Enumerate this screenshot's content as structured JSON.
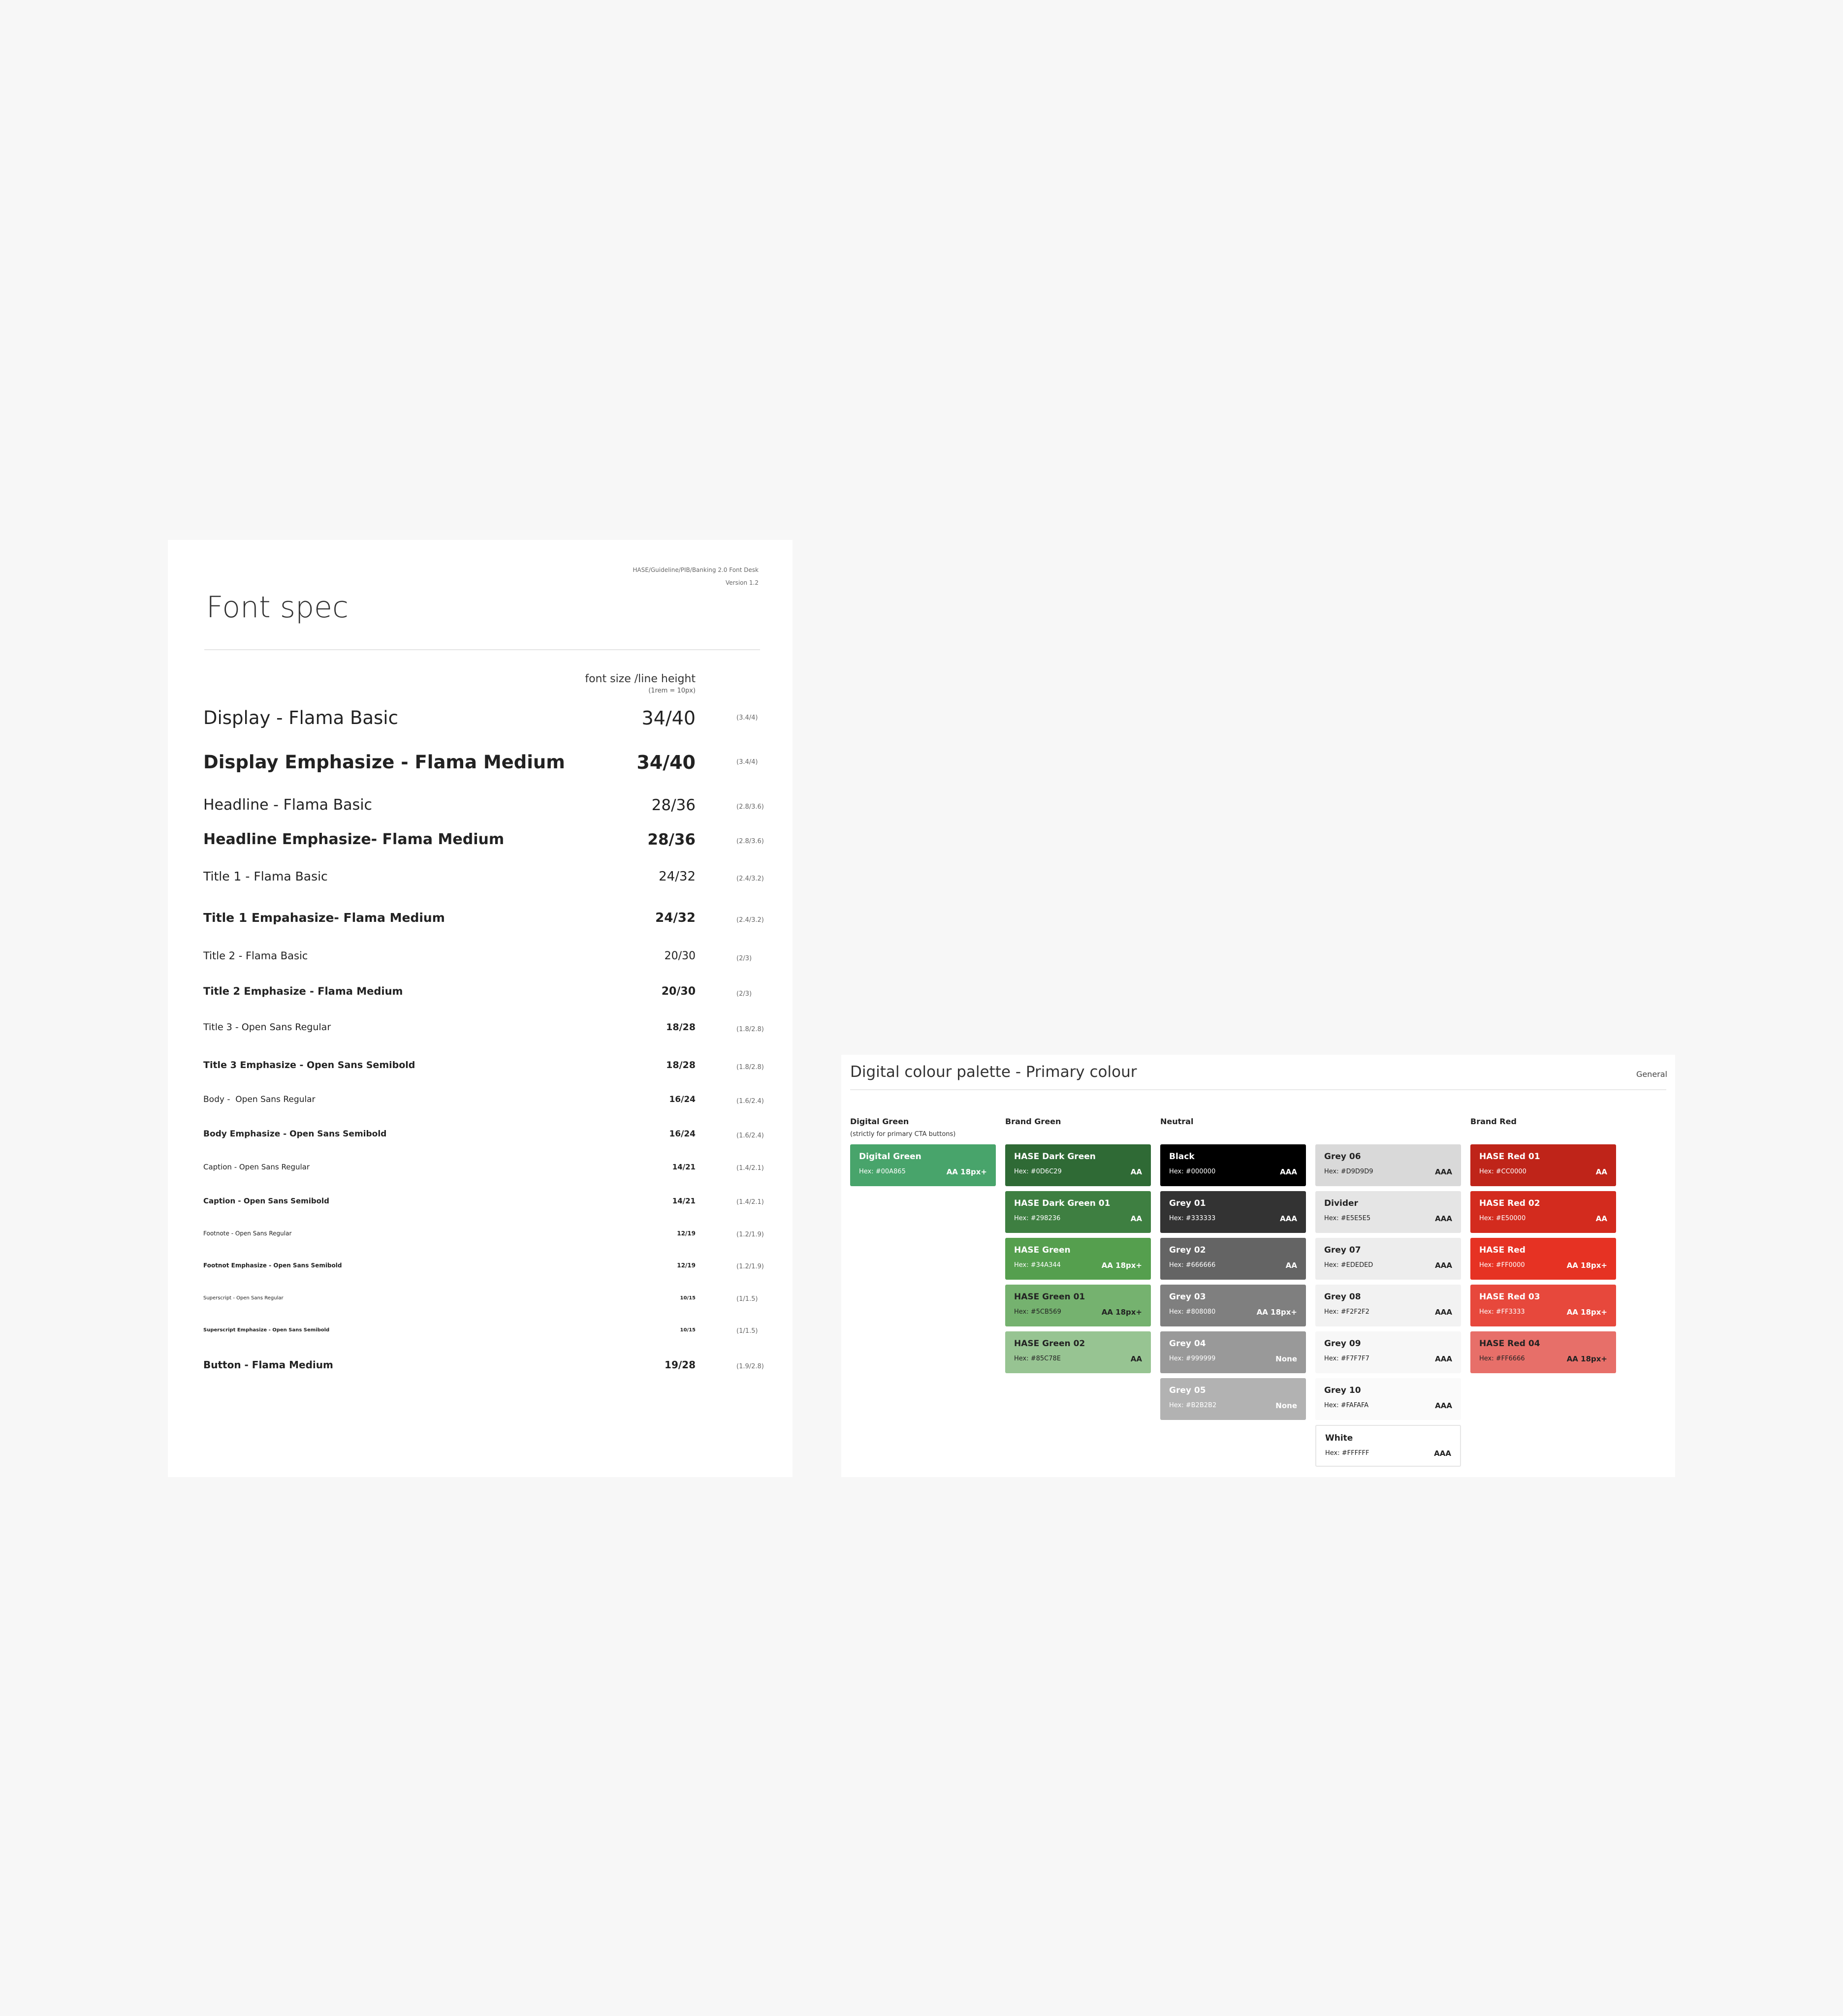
{
  "font_spec": {
    "breadcrumb": "HASE/Guideline/PIB/Banking 2.0 Font Desk",
    "version": "Version 1.2",
    "title": "Font spec",
    "column_header": "font size /line height",
    "column_subheader": "(1rem = 10px)",
    "rows": [
      {
        "name": "Display - Flama Basic",
        "size": "34/40",
        "rem": "(3.4/4)"
      },
      {
        "name": "Display Emphasize - Flama Medium",
        "size": "34/40",
        "rem": "(3.4/4)"
      },
      {
        "name": "Headline - Flama Basic",
        "size": "28/36",
        "rem": "(2.8/3.6)"
      },
      {
        "name": "Headline Emphasize- Flama Medium",
        "size": "28/36",
        "rem": "(2.8/3.6)"
      },
      {
        "name": "Title 1 - Flama Basic",
        "size": "24/32",
        "rem": "(2.4/3.2)"
      },
      {
        "name": "Title 1 Empahasize- Flama Medium",
        "size": "24/32",
        "rem": "(2.4/3.2)"
      },
      {
        "name": "Title 2 - Flama Basic",
        "size": "20/30",
        "rem": "(2/3)"
      },
      {
        "name": "Title 2 Emphasize - Flama Medium",
        "size": "20/30",
        "rem": "(2/3)"
      },
      {
        "name": "Title 3 - Open Sans Regular",
        "size": "18/28",
        "rem": "(1.8/2.8)"
      },
      {
        "name": "Title 3 Emphasize - Open Sans Semibold",
        "size": "18/28",
        "rem": "(1.8/2.8)"
      },
      {
        "name": "Body -  Open Sans Regular",
        "size": "16/24",
        "rem": "(1.6/2.4)"
      },
      {
        "name": "Body Emphasize - Open Sans Semibold",
        "size": "16/24",
        "rem": "(1.6/2.4)"
      },
      {
        "name": "Caption - Open Sans Regular",
        "size": "14/21",
        "rem": "(1.4/2.1)"
      },
      {
        "name": "Caption - Open Sans Semibold",
        "size": "14/21",
        "rem": "(1.4/2.1)"
      },
      {
        "name": "Footnote - Open Sans Regular",
        "size": "12/19",
        "rem": "(1.2/1.9)"
      },
      {
        "name": "Footnot Emphasize - Open Sans Semibold",
        "size": "12/19",
        "rem": "(1.2/1.9)"
      },
      {
        "name": "Superscript - Open Sans Regular",
        "size": "10/15",
        "rem": "(1/1.5)"
      },
      {
        "name": "Superscript Emphasize - Open Sans Semibold",
        "size": "10/15",
        "rem": "(1/1.5)"
      },
      {
        "name": "Button - Flama Medium",
        "size": "19/28",
        "rem": "(1.9/2.8)"
      }
    ]
  },
  "palette": {
    "title": "Digital colour palette - Primary colour",
    "tag": "General",
    "columns": [
      {
        "head": "Digital Green",
        "sub": "(strictly for primary CTA buttons)"
      },
      {
        "head": "Brand Green",
        "sub": ""
      },
      {
        "head": "Neutral",
        "sub": ""
      },
      {
        "head": "",
        "sub": ""
      },
      {
        "head": "Brand Red",
        "sub": ""
      }
    ],
    "swatches": [
      [
        {
          "name": "Digital Green",
          "hex": "Hex: #00A865",
          "rating": "AA 18px+",
          "color": "#48a46b",
          "text": "#ffffff"
        }
      ],
      [
        {
          "name": "HASE Dark Green",
          "hex": "Hex: #0D6C29",
          "rating": "AA",
          "color": "#2f6a35",
          "text": "#ffffff"
        },
        {
          "name": "HASE Dark Green 01",
          "hex": "Hex: #298236",
          "rating": "AA",
          "color": "#3e7f41",
          "text": "#ffffff"
        },
        {
          "name": "HASE Green",
          "hex": "Hex: #34A344",
          "rating": "AA 18px+",
          "color": "#559f4e",
          "text": "#ffffff"
        },
        {
          "name": "HASE Green 01",
          "hex": "Hex: #5CB569",
          "rating": "AA 18px+",
          "color": "#75b26f",
          "text": "#222222"
        },
        {
          "name": "HASE Green 02",
          "hex": "Hex: #85C78E",
          "rating": "AA",
          "color": "#97c492",
          "text": "#222222"
        }
      ],
      [
        {
          "name": "Black",
          "hex": "Hex: #000000",
          "rating": "AAA",
          "color": "#000000",
          "text": "#ffffff"
        },
        {
          "name": "Grey 01",
          "hex": "Hex: #333333",
          "rating": "AAA",
          "color": "#333333",
          "text": "#ffffff"
        },
        {
          "name": "Grey 02",
          "hex": "Hex: #666666",
          "rating": "AA",
          "color": "#646464",
          "text": "#ffffff"
        },
        {
          "name": "Grey 03",
          "hex": "Hex: #808080",
          "rating": "AA 18px+",
          "color": "#7f7f7f",
          "text": "#ffffff"
        },
        {
          "name": "Grey 04",
          "hex": "Hex: #999999",
          "rating": "None",
          "color": "#999999",
          "text": "#ffffff"
        },
        {
          "name": "Grey 05",
          "hex": "Hex: #B2B2B2",
          "rating": "None",
          "color": "#b2b2b2",
          "text": "#ffffff"
        }
      ],
      [
        {
          "name": "Grey 06",
          "hex": "Hex: #D9D9D9",
          "rating": "AAA",
          "color": "#d9d9d9",
          "text": "#222222"
        },
        {
          "name": "Divider",
          "hex": "Hex: #E5E5E5",
          "rating": "AAA",
          "color": "#e5e5e5",
          "text": "#222222"
        },
        {
          "name": "Grey 07",
          "hex": "Hex: #EDEDED",
          "rating": "AAA",
          "color": "#ededed",
          "text": "#222222"
        },
        {
          "name": "Grey 08",
          "hex": "Hex: #F2F2F2",
          "rating": "AAA",
          "color": "#f2f2f2",
          "text": "#222222"
        },
        {
          "name": "Grey 09",
          "hex": "Hex: #F7F7F7",
          "rating": "AAA",
          "color": "#f7f7f7",
          "text": "#222222"
        },
        {
          "name": "Grey 10",
          "hex": "Hex: #FAFAFA",
          "rating": "AAA",
          "color": "#fafafa",
          "text": "#222222"
        },
        {
          "name": "White",
          "hex": "Hex: #FFFFFF",
          "rating": "AAA",
          "color": "#ffffff",
          "text": "#222222"
        }
      ],
      [
        {
          "name": "HASE Red 01",
          "hex": "Hex: #CC0000",
          "rating": "AA",
          "color": "#bf2419",
          "text": "#ffffff"
        },
        {
          "name": "HASE Red 02",
          "hex": "Hex: #E50000",
          "rating": "AA",
          "color": "#d32b1e",
          "text": "#ffffff"
        },
        {
          "name": "HASE Red",
          "hex": "Hex: #FF0000",
          "rating": "AA 18px+",
          "color": "#e63223",
          "text": "#ffffff"
        },
        {
          "name": "HASE Red 03",
          "hex": "Hex: #FF3333",
          "rating": "AA 18px+",
          "color": "#e7483c",
          "text": "#ffffff"
        },
        {
          "name": "HASE Red 04",
          "hex": "Hex: #FF6666",
          "rating": "AA 18px+",
          "color": "#e76f69",
          "text": "#222222"
        }
      ]
    ]
  }
}
